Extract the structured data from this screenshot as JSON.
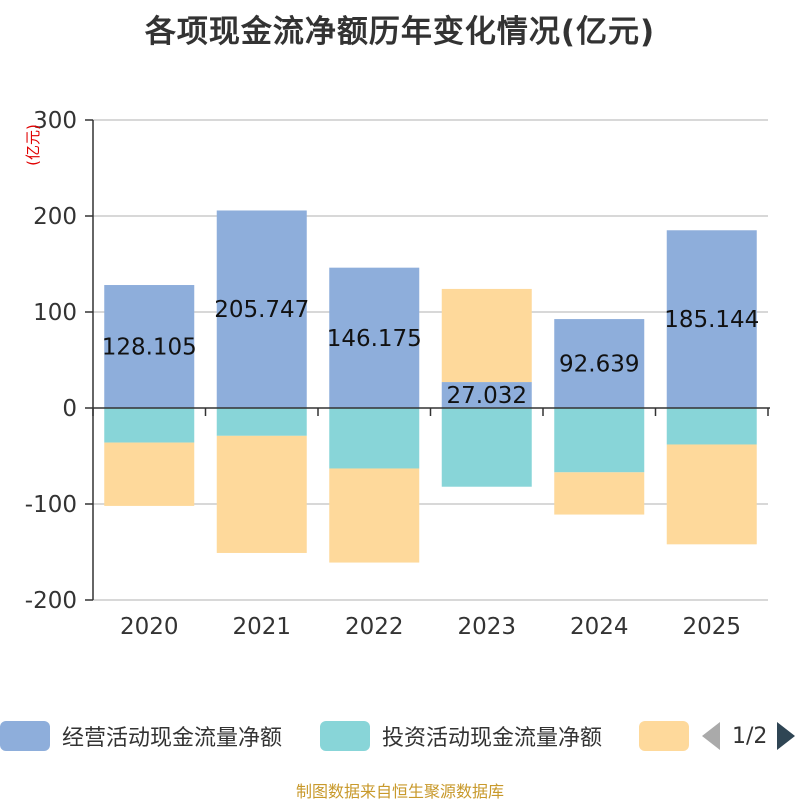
{
  "chart_data": {
    "type": "bar",
    "stacked": true,
    "title": "各项现金流净额历年变化情况(亿元)",
    "ylabel": "(亿元)",
    "xlabel": "",
    "categories": [
      "2020",
      "2021",
      "2022",
      "2023",
      "2024",
      "2025"
    ],
    "ylim": [
      -200,
      300
    ],
    "yticks": [
      -200,
      -100,
      0,
      100,
      200,
      300
    ],
    "grid": true,
    "series": [
      {
        "name": "经营活动现金流量净额",
        "color": "#8eaedb",
        "values": [
          128.105,
          205.747,
          146.175,
          27.032,
          92.639,
          185.144
        ],
        "labels": [
          "128.105",
          "205.747",
          "146.175",
          "27.032",
          "92.639",
          "185.144"
        ]
      },
      {
        "name": "投资活动现金流量净额",
        "color": "#88d5d8",
        "values": [
          -36,
          -29,
          -63,
          -82,
          -67,
          -38
        ]
      },
      {
        "name": "",
        "color": "#fed99b",
        "values": [
          -66,
          -122,
          -98,
          97,
          -44,
          -104
        ]
      }
    ],
    "legend_position": "bottom"
  },
  "legend_page": "1/2",
  "footer": "制图数据来自恒生聚源数据库"
}
